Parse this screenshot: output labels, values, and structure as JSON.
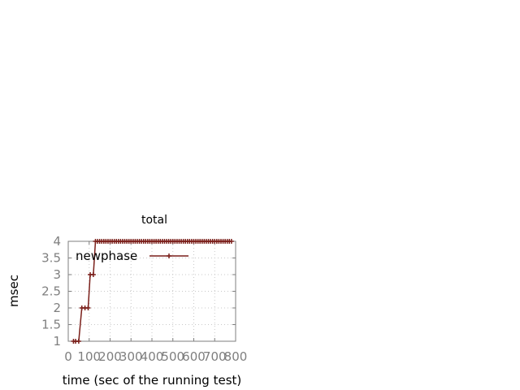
{
  "chart_data": {
    "type": "line",
    "title": "total",
    "xlabel": "time (sec of the running test)",
    "ylabel": "msec",
    "xlim": [
      0,
      800
    ],
    "ylim": [
      1,
      4
    ],
    "x_ticks": [
      "0",
      "100",
      "200",
      "300",
      "400",
      "500",
      "600",
      "700",
      "800"
    ],
    "y_ticks": [
      "1",
      "1.5",
      "2",
      "2.5",
      "3",
      "3.5",
      "4"
    ],
    "grid": true,
    "legend_position": "top-left",
    "series_color": "#7a1f1a",
    "series": [
      {
        "name": "newphase",
        "x": [
          25,
          35,
          50,
          65,
          80,
          95,
          105,
          120,
          130,
          140,
          150,
          160,
          170,
          180,
          190,
          200,
          210,
          220,
          230,
          240,
          250,
          260,
          270,
          280,
          290,
          300,
          310,
          320,
          330,
          340,
          350,
          360,
          370,
          380,
          390,
          400,
          410,
          420,
          430,
          440,
          450,
          460,
          470,
          480,
          490,
          500,
          510,
          520,
          530,
          540,
          550,
          560,
          570,
          580,
          590,
          600,
          610,
          620,
          630,
          640,
          650,
          660,
          670,
          680,
          690,
          700,
          710,
          720,
          730,
          740,
          750,
          760,
          770,
          780
        ],
        "y": [
          1,
          1,
          1,
          2,
          2,
          2,
          3,
          3,
          4,
          4,
          4,
          4,
          4,
          4,
          4,
          4,
          4,
          4,
          4,
          4,
          4,
          4,
          4,
          4,
          4,
          4,
          4,
          4,
          4,
          4,
          4,
          4,
          4,
          4,
          4,
          4,
          4,
          4,
          4,
          4,
          4,
          4,
          4,
          4,
          4,
          4,
          4,
          4,
          4,
          4,
          4,
          4,
          4,
          4,
          4,
          4,
          4,
          4,
          4,
          4,
          4,
          4,
          4,
          4,
          4,
          4,
          4,
          4,
          4,
          4,
          4,
          4,
          4,
          4
        ]
      }
    ]
  }
}
